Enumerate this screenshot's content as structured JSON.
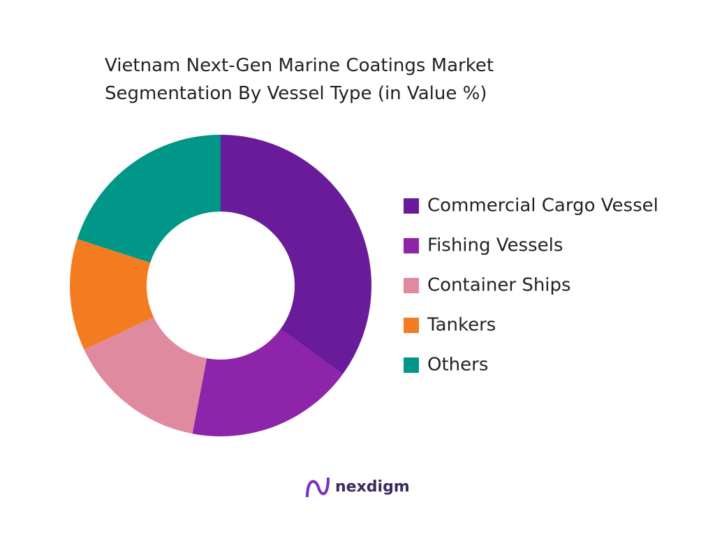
{
  "chart_data": {
    "type": "donut",
    "title": [
      "Vietnam Next-Gen Marine Coatings Market",
      "Segmentation By Vessel Type (in Value %)"
    ],
    "categories": [
      "Commercial Cargo Vessel",
      "Fishing Vessels",
      "Container Ships",
      "Tankers",
      "Others"
    ],
    "values": [
      35,
      18,
      15,
      12,
      20
    ],
    "colors": [
      "#6a1b9a",
      "#8e24aa",
      "#e08aa0",
      "#f47c20",
      "#009688"
    ],
    "legend": "right"
  },
  "brand": "nexdigm"
}
